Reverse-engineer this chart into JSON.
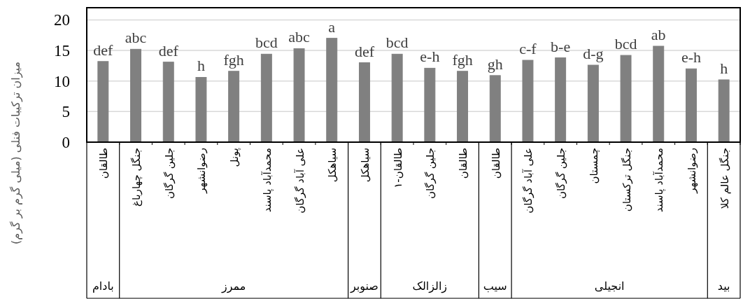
{
  "chart_data": {
    "type": "bar",
    "ylabel": "میزان ترکیبات فنلی (میلی گرم بر گرم)",
    "categories": [
      "طالقان",
      "جنگل چهارباغ",
      "جلین گرگان",
      "رضوانشهر",
      "پونل",
      "محمدآباد پاسند",
      "علی آباد گرگان",
      "سیاهکل",
      "سیاهکل",
      "طالقان-۱",
      "جلین گرگان",
      "طالقان",
      "طالقان",
      "علی آباد گرگان",
      "جلین گرگان",
      "چمستان",
      "جنگل ترکستان",
      "محمدآباد پاسند",
      "رضوانشهر",
      "جنگل عالم کلا"
    ],
    "values": [
      13.2,
      15.2,
      13.1,
      10.6,
      11.6,
      14.4,
      15.3,
      17.0,
      13.0,
      14.4,
      12.1,
      11.6,
      10.9,
      13.4,
      13.8,
      12.6,
      14.2,
      15.7,
      12.0,
      10.2
    ],
    "value_labels": [
      "def",
      "abc",
      "def",
      "h",
      "fgh",
      "bcd",
      "abc",
      "a",
      "def",
      "bcd",
      "e-h",
      "fgh",
      "gh",
      "c-f",
      "b-e",
      "d-g",
      "bcd",
      "ab",
      "e-h",
      "h"
    ],
    "color": "#808080",
    "ylim": [
      0,
      22
    ],
    "yticks": [
      0,
      5,
      10,
      15,
      20
    ],
    "grid": "y",
    "annotations": [
      "بادام",
      "ممرز",
      "صنوبر",
      "زالزالک",
      "سیب",
      "انجیلی",
      "بید"
    ]
  }
}
